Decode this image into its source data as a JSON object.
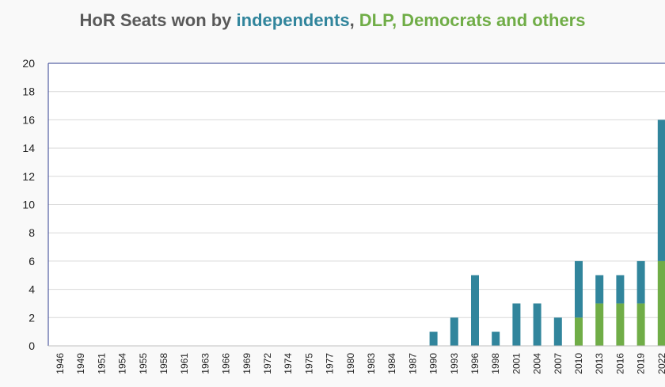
{
  "chart_data": {
    "type": "bar",
    "stacked": true,
    "title_parts": [
      {
        "text": "HoR Seats won by ",
        "color": "#595959"
      },
      {
        "text": "independents",
        "color": "#31859c"
      },
      {
        "text": ", ",
        "color": "#595959"
      },
      {
        "text": "DLP, Democrats and others",
        "color": "#70ad47"
      }
    ],
    "categories": [
      "1946",
      "1949",
      "1951",
      "1954",
      "1955",
      "1958",
      "1961",
      "1963",
      "1966",
      "1969",
      "1972",
      "1974",
      "1975",
      "1977",
      "1980",
      "1983",
      "1984",
      "1987",
      "1990",
      "1993",
      "1996",
      "1998",
      "2001",
      "2004",
      "2007",
      "2010",
      "2013",
      "2016",
      "2019",
      "2022"
    ],
    "series": [
      {
        "color": "#70ad47",
        "values": [
          0,
          0,
          0,
          0,
          0,
          0,
          0,
          0,
          0,
          0,
          0,
          0,
          0,
          0,
          0,
          0,
          0,
          0,
          0,
          0,
          0,
          0,
          0,
          0,
          0,
          2,
          3,
          3,
          3,
          6
        ]
      },
      {
        "color": "#31859c",
        "values": [
          0,
          0,
          0,
          0,
          0,
          0,
          0,
          0,
          0,
          0,
          0,
          0,
          0,
          0,
          0,
          0,
          0,
          0,
          1,
          2,
          5,
          1,
          3,
          3,
          2,
          4,
          2,
          2,
          3,
          10
        ]
      }
    ],
    "ylim": [
      0,
      20
    ],
    "yticks": [
      0,
      2,
      4,
      6,
      8,
      10,
      12,
      14,
      16,
      18,
      20
    ],
    "grid": true,
    "axis_color": "#2f3c8f",
    "grid_color": "#d9d9d9"
  }
}
